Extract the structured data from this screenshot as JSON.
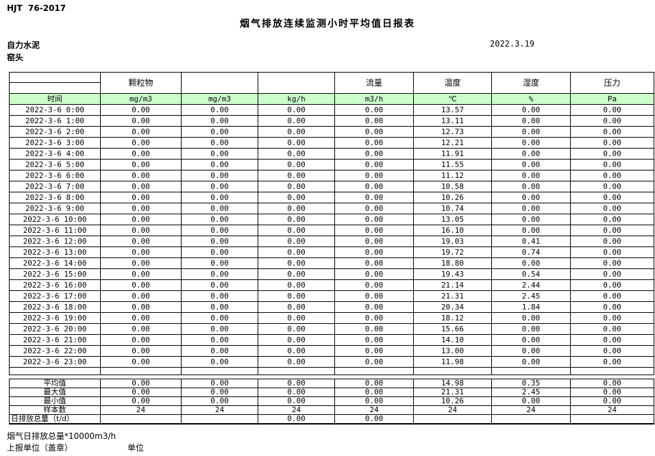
{
  "doc": {
    "standard": "HJT  76-2017",
    "title": "烟气排放连续监测小时平均值日报表",
    "company": "自力水泥",
    "station": "窑头",
    "date": "2022.3.19"
  },
  "table": {
    "unit_row_bg": "#ccffcc",
    "group_headers": [
      "",
      "颗粒物",
      "",
      "",
      "流量",
      "温度",
      "湿度",
      "压力"
    ],
    "unit_row": [
      "时间",
      "mg/m3",
      "mg/m3",
      "kg/h",
      "m3/h",
      "℃",
      "%",
      "Pa"
    ],
    "rows": [
      {
        "time": "2022-3-6 0:00",
        "values": [
          "0.00",
          "0.00",
          "0.00",
          "0.00",
          "13.57",
          "0.00",
          "0.00"
        ]
      },
      {
        "time": "2022-3-6 1:00",
        "values": [
          "0.00",
          "0.00",
          "0.00",
          "0.00",
          "13.11",
          "0.00",
          "0.00"
        ]
      },
      {
        "time": "2022-3-6 2:00",
        "values": [
          "0.00",
          "0.00",
          "0.00",
          "0.00",
          "12.73",
          "0.00",
          "0.00"
        ]
      },
      {
        "time": "2022-3-6 3:00",
        "values": [
          "0.00",
          "0.00",
          "0.00",
          "0.00",
          "12.21",
          "0.00",
          "0.00"
        ]
      },
      {
        "time": "2022-3-6 4:00",
        "values": [
          "0.00",
          "0.00",
          "0.00",
          "0.00",
          "11.91",
          "0.00",
          "0.00"
        ]
      },
      {
        "time": "2022-3-6 5:00",
        "values": [
          "0.00",
          "0.00",
          "0.00",
          "0.00",
          "11.55",
          "0.00",
          "0.00"
        ]
      },
      {
        "time": "2022-3-6 6:00",
        "values": [
          "0.00",
          "0.00",
          "0.00",
          "0.00",
          "11.12",
          "0.00",
          "0.00"
        ]
      },
      {
        "time": "2022-3-6 7:00",
        "values": [
          "0.00",
          "0.00",
          "0.00",
          "0.00",
          "10.58",
          "0.00",
          "0.00"
        ]
      },
      {
        "time": "2022-3-6 8:00",
        "values": [
          "0.00",
          "0.00",
          "0.00",
          "0.00",
          "10.26",
          "0.00",
          "0.00"
        ]
      },
      {
        "time": "2022-3-6 9:00",
        "values": [
          "0.00",
          "0.00",
          "0.00",
          "0.00",
          "10.74",
          "0.00",
          "0.00"
        ]
      },
      {
        "time": "2022-3-6 10:00",
        "values": [
          "0.00",
          "0.00",
          "0.00",
          "0.00",
          "13.05",
          "0.00",
          "0.00"
        ]
      },
      {
        "time": "2022-3-6 11:00",
        "values": [
          "0.00",
          "0.00",
          "0.00",
          "0.00",
          "16.10",
          "0.00",
          "0.00"
        ]
      },
      {
        "time": "2022-3-6 12:00",
        "values": [
          "0.00",
          "0.00",
          "0.00",
          "0.00",
          "19.03",
          "0.41",
          "0.00"
        ]
      },
      {
        "time": "2022-3-6 13:00",
        "values": [
          "0.00",
          "0.00",
          "0.00",
          "0.00",
          "19.72",
          "0.74",
          "0.00"
        ]
      },
      {
        "time": "2022-3-6 14:00",
        "values": [
          "0.00",
          "0.00",
          "0.00",
          "0.00",
          "18.80",
          "0.00",
          "0.00"
        ]
      },
      {
        "time": "2022-3-6 15:00",
        "values": [
          "0.00",
          "0.00",
          "0.00",
          "0.00",
          "19.43",
          "0.54",
          "0.00"
        ]
      },
      {
        "time": "2022-3-6 16:00",
        "values": [
          "0.00",
          "0.00",
          "0.00",
          "0.00",
          "21.14",
          "2.44",
          "0.00"
        ]
      },
      {
        "time": "2022-3-6 17:00",
        "values": [
          "0.00",
          "0.00",
          "0.00",
          "0.00",
          "21.31",
          "2.45",
          "0.00"
        ]
      },
      {
        "time": "2022-3-6 18:00",
        "values": [
          "0.00",
          "0.00",
          "0.00",
          "0.00",
          "20.34",
          "1.84",
          "0.00"
        ]
      },
      {
        "time": "2022-3-6 19:00",
        "values": [
          "0.00",
          "0.00",
          "0.00",
          "0.00",
          "18.12",
          "0.00",
          "0.00"
        ]
      },
      {
        "time": "2022-3-6 20:00",
        "values": [
          "0.00",
          "0.00",
          "0.00",
          "0.00",
          "15.66",
          "0.00",
          "0.00"
        ]
      },
      {
        "time": "2022-3-6 21:00",
        "values": [
          "0.00",
          "0.00",
          "0.00",
          "0.00",
          "14.10",
          "0.00",
          "0.00"
        ]
      },
      {
        "time": "2022-3-6 22:00",
        "values": [
          "0.00",
          "0.00",
          "0.00",
          "0.00",
          "13.00",
          "0.00",
          "0.00"
        ]
      },
      {
        "time": "2022-3-6 23:00",
        "values": [
          "0.00",
          "0.00",
          "0.00",
          "0.00",
          "11.98",
          "0.00",
          "0.00"
        ]
      }
    ],
    "summary": [
      {
        "label": "平均值",
        "values": [
          "0.00",
          "0.00",
          "0.00",
          "0.00",
          "14.98",
          "0.35",
          "0.00"
        ]
      },
      {
        "label": "最大值",
        "values": [
          "0.00",
          "0.00",
          "0.00",
          "0.00",
          "21.31",
          "2.45",
          "0.00"
        ]
      },
      {
        "label": "最小值",
        "values": [
          "0.00",
          "0.00",
          "0.00",
          "0.00",
          "10.26",
          "0.00",
          "0.00"
        ]
      },
      {
        "label": "样本数",
        "values": [
          "24",
          "24",
          "24",
          "24",
          "24",
          "24",
          "24"
        ]
      },
      {
        "label": "日排放总量（t/d）",
        "values": [
          "",
          "",
          "0.00",
          "0.00",
          "",
          "",
          ""
        ]
      }
    ]
  },
  "footer": {
    "note": "烟气日排放总量*10000m3/h",
    "report_unit_label": "上报单位（盖章）",
    "unit_label": "单位"
  }
}
